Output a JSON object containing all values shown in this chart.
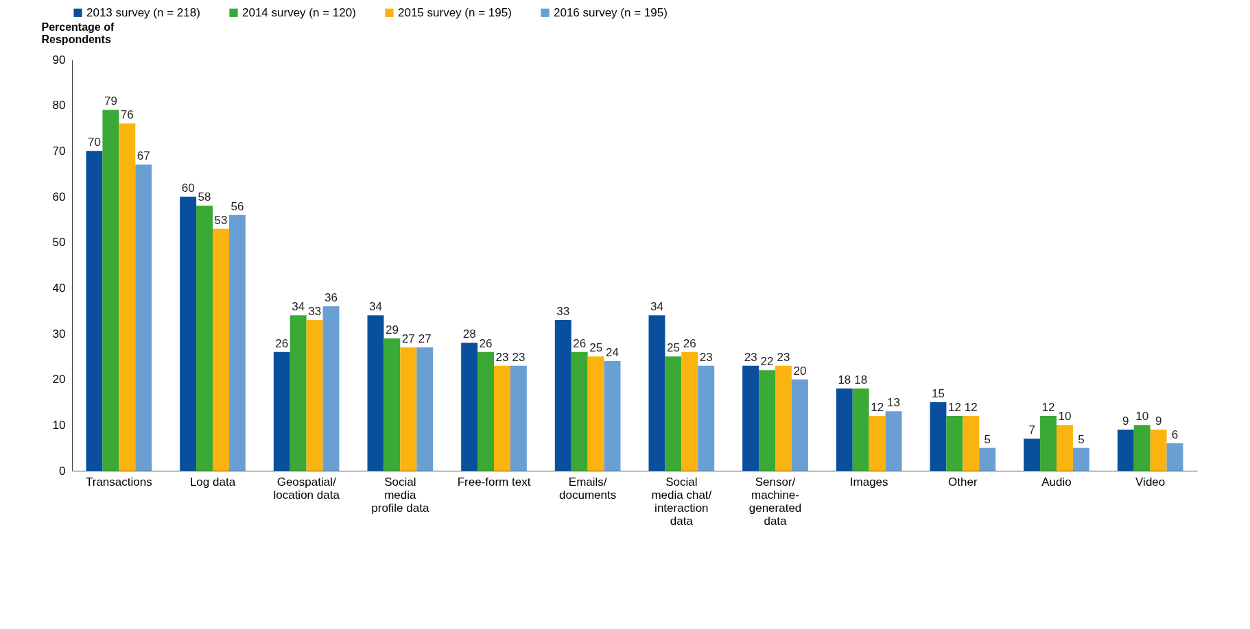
{
  "chart_data": {
    "type": "bar",
    "ylabel": "Percentage of\nRespondents",
    "categories": [
      "Transactions",
      "Log data",
      "Geospatial/\nlocation data",
      "Social\nmedia\nprofile data",
      "Free-form text",
      "Emails/\ndocuments",
      "Social\nmedia chat/\ninteraction\ndata",
      "Sensor/\nmachine-\ngenerated\ndata",
      "Images",
      "Other",
      "Audio",
      "Video"
    ],
    "series": [
      {
        "name": "2013 survey (n = 218)",
        "color": "#0a4f9e",
        "values": [
          70,
          60,
          26,
          34,
          28,
          33,
          34,
          23,
          18,
          15,
          7,
          9
        ]
      },
      {
        "name": "2014 survey (n = 120)",
        "color": "#3aa935",
        "values": [
          79,
          58,
          34,
          29,
          26,
          26,
          25,
          22,
          18,
          12,
          12,
          10
        ]
      },
      {
        "name": "2015 survey (n = 195)",
        "color": "#fbb40f",
        "values": [
          76,
          53,
          33,
          27,
          23,
          25,
          26,
          23,
          12,
          12,
          10,
          9
        ]
      },
      {
        "name": "2016 survey (n = 195)",
        "color": "#6a9fd3",
        "values": [
          67,
          56,
          36,
          27,
          23,
          24,
          23,
          20,
          13,
          5,
          5,
          6
        ]
      }
    ],
    "ylim": [
      0,
      90
    ],
    "yticks": [
      0,
      10,
      20,
      30,
      40,
      50,
      60,
      70,
      80,
      90
    ],
    "data_labels": true,
    "grid": false,
    "legend": "top"
  }
}
